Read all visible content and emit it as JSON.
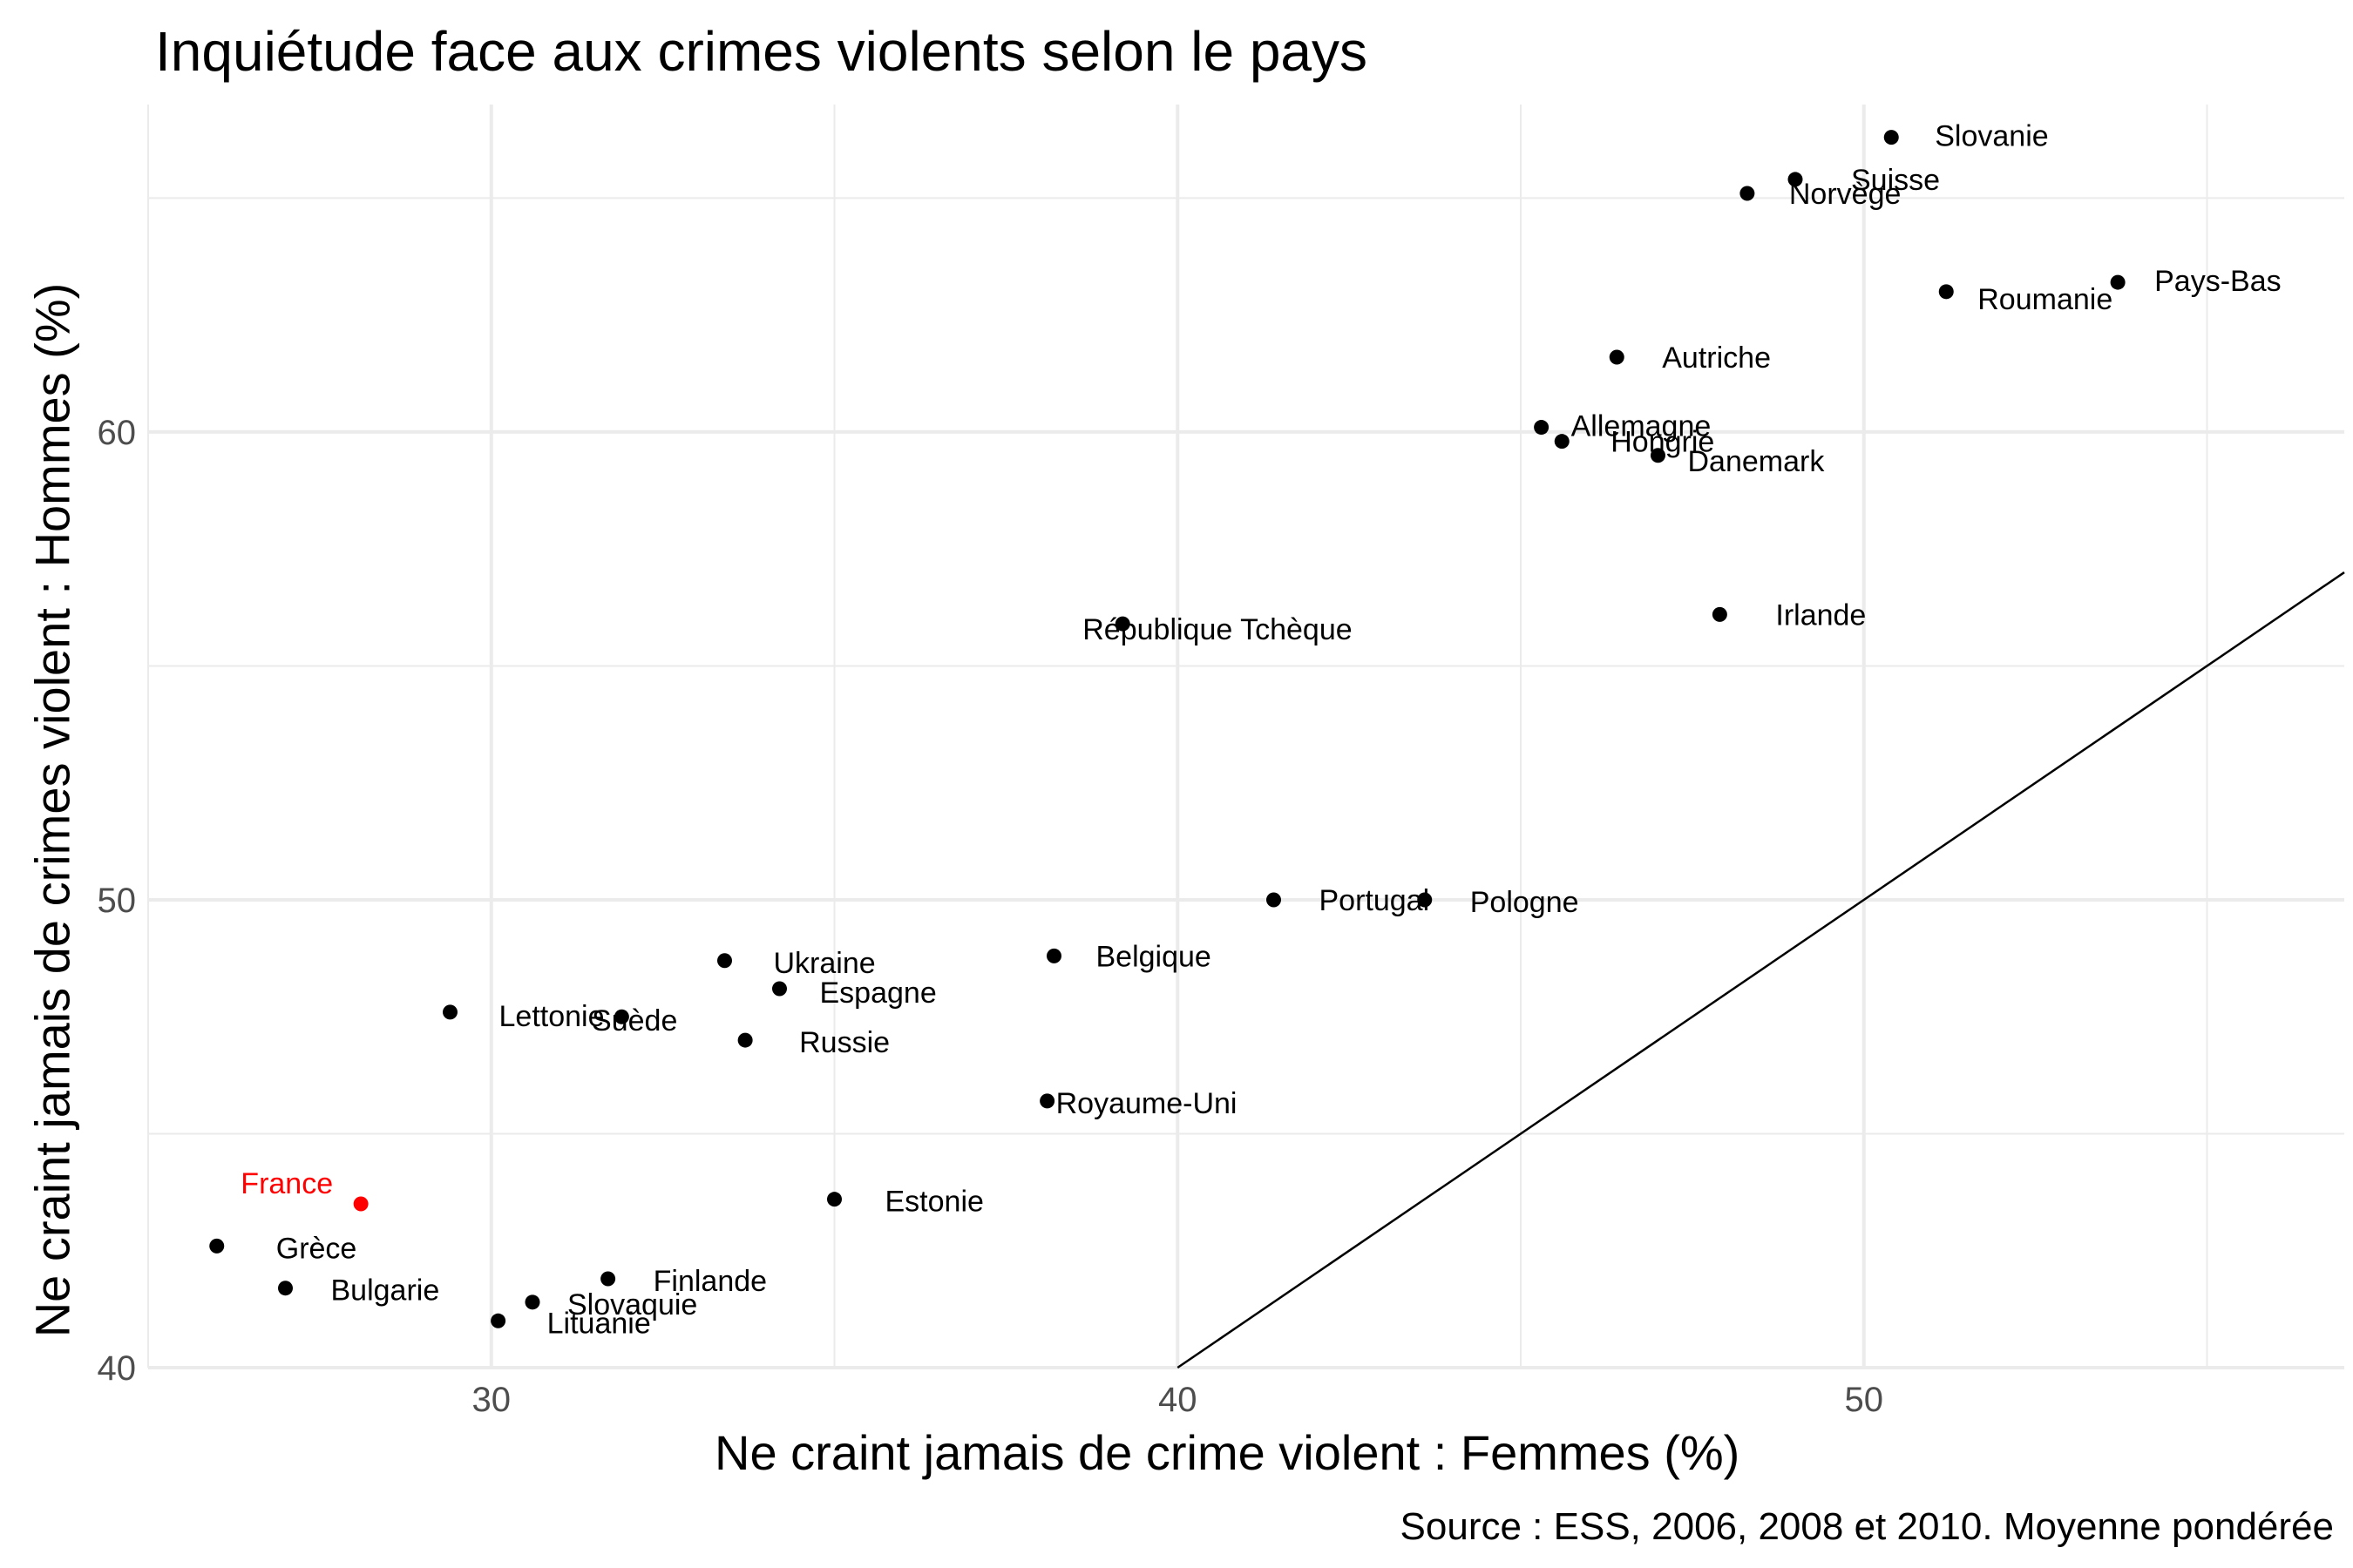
{
  "chart_data": {
    "type": "scatter",
    "title": "Inquiétude face aux crimes violents selon le pays",
    "xlabel": "Ne craint jamais de crime violent : Femmes (%)",
    "ylabel": "Ne craint jamais de crimes violent : Hommes (%)",
    "caption": "Source : ESS, 2006, 2008 et 2010. Moyenne pondérée",
    "xlim": [
      25,
      57
    ],
    "ylim": [
      40,
      67
    ],
    "x_ticks": [
      30,
      40,
      50
    ],
    "y_ticks": [
      40,
      50,
      60
    ],
    "grid": true,
    "reference_line": "y = x",
    "colors": {
      "default": "#000000",
      "highlight": "#ff0000",
      "grid": "#ebebeb",
      "axis_text": "#4d4d4d"
    },
    "points": [
      {
        "label": "Slovanie",
        "x": 50.4,
        "y": 66.3
      },
      {
        "label": "Suisse",
        "x": 49.0,
        "y": 65.4
      },
      {
        "label": "Norvège",
        "x": 48.3,
        "y": 65.1
      },
      {
        "label": "Roumanie",
        "x": 51.2,
        "y": 63.0
      },
      {
        "label": "Pays-Bas",
        "x": 53.7,
        "y": 63.2
      },
      {
        "label": "Autriche",
        "x": 46.4,
        "y": 61.6
      },
      {
        "label": "Allemagne",
        "x": 45.3,
        "y": 60.1
      },
      {
        "label": "Hongrie",
        "x": 45.6,
        "y": 59.8
      },
      {
        "label": "Danemark",
        "x": 47.0,
        "y": 59.5
      },
      {
        "label": "République Tchèque",
        "x": 39.2,
        "y": 55.9
      },
      {
        "label": "Irlande",
        "x": 47.9,
        "y": 56.1
      },
      {
        "label": "Portugal",
        "x": 41.4,
        "y": 50.0
      },
      {
        "label": "Pologne",
        "x": 43.6,
        "y": 50.0
      },
      {
        "label": "Belgique",
        "x": 38.2,
        "y": 48.8
      },
      {
        "label": "Ukraine",
        "x": 33.4,
        "y": 48.7
      },
      {
        "label": "Espagne",
        "x": 34.2,
        "y": 48.1
      },
      {
        "label": "Lettonie",
        "x": 29.4,
        "y": 47.6
      },
      {
        "label": "Suède",
        "x": 31.9,
        "y": 47.5
      },
      {
        "label": "Russie",
        "x": 33.7,
        "y": 47.0
      },
      {
        "label": "Royaume-Uni",
        "x": 38.1,
        "y": 45.7
      },
      {
        "label": "Estonie",
        "x": 35.0,
        "y": 43.6
      },
      {
        "label": "France",
        "x": 28.1,
        "y": 43.5,
        "highlight": true
      },
      {
        "label": "Grèce",
        "x": 26.0,
        "y": 42.6
      },
      {
        "label": "Bulgarie",
        "x": 27.0,
        "y": 41.7
      },
      {
        "label": "Finlande",
        "x": 31.7,
        "y": 41.9
      },
      {
        "label": "Slovaquie",
        "x": 30.6,
        "y": 41.4
      },
      {
        "label": "Lituanie",
        "x": 30.1,
        "y": 41.0
      }
    ]
  }
}
